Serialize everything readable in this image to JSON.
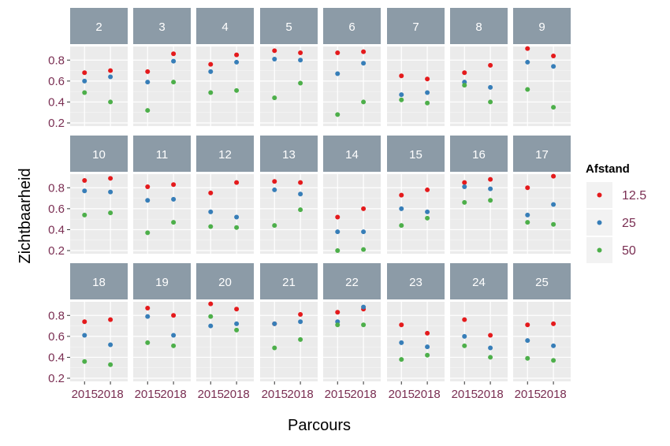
{
  "chart_data": {
    "type": "scatter",
    "facet_layout": "wrap-3x8",
    "xlabel": "Parcours",
    "ylabel": "Zichtbaarheid",
    "x_categories": [
      "2015",
      "2018"
    ],
    "yticks": [
      0.2,
      0.4,
      0.6,
      0.8
    ],
    "ylim": [
      0.17,
      0.93
    ],
    "grid": true,
    "legend": {
      "title": "Afstand",
      "position": "right",
      "entries": [
        {
          "label": "12.5",
          "color": "#e41a1c"
        },
        {
          "label": "25",
          "color": "#377eb8"
        },
        {
          "label": "50",
          "color": "#4daf4a"
        }
      ]
    },
    "panels": [
      {
        "label": "2",
        "v12_5": [
          0.68,
          0.7
        ],
        "v25": [
          0.6,
          0.64
        ],
        "v50": [
          0.49,
          0.4
        ]
      },
      {
        "label": "3",
        "v12_5": [
          0.69,
          0.86
        ],
        "v25": [
          0.59,
          0.79
        ],
        "v50": [
          0.32,
          0.59
        ]
      },
      {
        "label": "4",
        "v12_5": [
          0.76,
          0.85
        ],
        "v25": [
          0.69,
          0.78
        ],
        "v50": [
          0.49,
          0.51
        ]
      },
      {
        "label": "5",
        "v12_5": [
          0.89,
          0.87
        ],
        "v25": [
          0.81,
          0.8
        ],
        "v50": [
          0.44,
          0.58
        ]
      },
      {
        "label": "6",
        "v12_5": [
          0.87,
          0.88
        ],
        "v25": [
          0.67,
          0.77
        ],
        "v50": [
          0.28,
          0.4
        ]
      },
      {
        "label": "7",
        "v12_5": [
          0.65,
          0.62
        ],
        "v25": [
          0.47,
          0.49
        ],
        "v50": [
          0.42,
          0.39
        ]
      },
      {
        "label": "8",
        "v12_5": [
          0.68,
          0.75
        ],
        "v25": [
          0.59,
          0.54
        ],
        "v50": [
          0.56,
          0.4
        ]
      },
      {
        "label": "9",
        "v12_5": [
          0.91,
          0.84
        ],
        "v25": [
          0.78,
          0.74
        ],
        "v50": [
          0.52,
          0.35
        ]
      },
      {
        "label": "10",
        "v12_5": [
          0.87,
          0.89
        ],
        "v25": [
          0.77,
          0.76
        ],
        "v50": [
          0.54,
          0.56
        ]
      },
      {
        "label": "11",
        "v12_5": [
          0.81,
          0.83
        ],
        "v25": [
          0.68,
          0.69
        ],
        "v50": [
          0.37,
          0.47
        ]
      },
      {
        "label": "12",
        "v12_5": [
          0.75,
          0.85
        ],
        "v25": [
          0.57,
          0.52
        ],
        "v50": [
          0.43,
          0.42
        ]
      },
      {
        "label": "13",
        "v12_5": [
          0.86,
          0.85
        ],
        "v25": [
          0.78,
          0.74
        ],
        "v50": [
          0.44,
          0.59
        ]
      },
      {
        "label": "14",
        "v12_5": [
          0.52,
          0.6
        ],
        "v25": [
          0.38,
          0.38
        ],
        "v50": [
          0.2,
          0.21
        ]
      },
      {
        "label": "15",
        "v12_5": [
          0.73,
          0.78
        ],
        "v25": [
          0.6,
          0.57
        ],
        "v50": [
          0.44,
          0.51
        ]
      },
      {
        "label": "16",
        "v12_5": [
          0.85,
          0.88
        ],
        "v25": [
          0.81,
          0.79
        ],
        "v50": [
          0.66,
          0.68
        ]
      },
      {
        "label": "17",
        "v12_5": [
          0.8,
          0.91
        ],
        "v25": [
          0.54,
          0.64
        ],
        "v50": [
          0.47,
          0.45
        ]
      },
      {
        "label": "18",
        "v12_5": [
          0.74,
          0.76
        ],
        "v25": [
          0.61,
          0.52
        ],
        "v50": [
          0.36,
          0.33
        ]
      },
      {
        "label": "19",
        "v12_5": [
          0.87,
          0.8
        ],
        "v25": [
          0.79,
          0.61
        ],
        "v50": [
          0.54,
          0.51
        ]
      },
      {
        "label": "20",
        "v12_5": [
          0.91,
          0.86
        ],
        "v25": [
          0.7,
          0.72
        ],
        "v50": [
          0.79,
          0.66
        ]
      },
      {
        "label": "21",
        "v12_5": [
          0.72,
          0.81
        ],
        "v25": [
          0.72,
          0.74
        ],
        "v50": [
          0.49,
          0.57
        ]
      },
      {
        "label": "22",
        "v12_5": [
          0.83,
          0.86
        ],
        "v25": [
          0.74,
          0.88
        ],
        "v50": [
          0.71,
          0.71
        ]
      },
      {
        "label": "23",
        "v12_5": [
          0.71,
          0.63
        ],
        "v25": [
          0.54,
          0.5
        ],
        "v50": [
          0.38,
          0.42
        ]
      },
      {
        "label": "24",
        "v12_5": [
          0.76,
          0.61
        ],
        "v25": [
          0.6,
          0.49
        ],
        "v50": [
          0.51,
          0.4
        ]
      },
      {
        "label": "25",
        "v12_5": [
          0.71,
          0.72
        ],
        "v25": [
          0.56,
          0.51
        ],
        "v50": [
          0.39,
          0.37
        ]
      }
    ]
  }
}
